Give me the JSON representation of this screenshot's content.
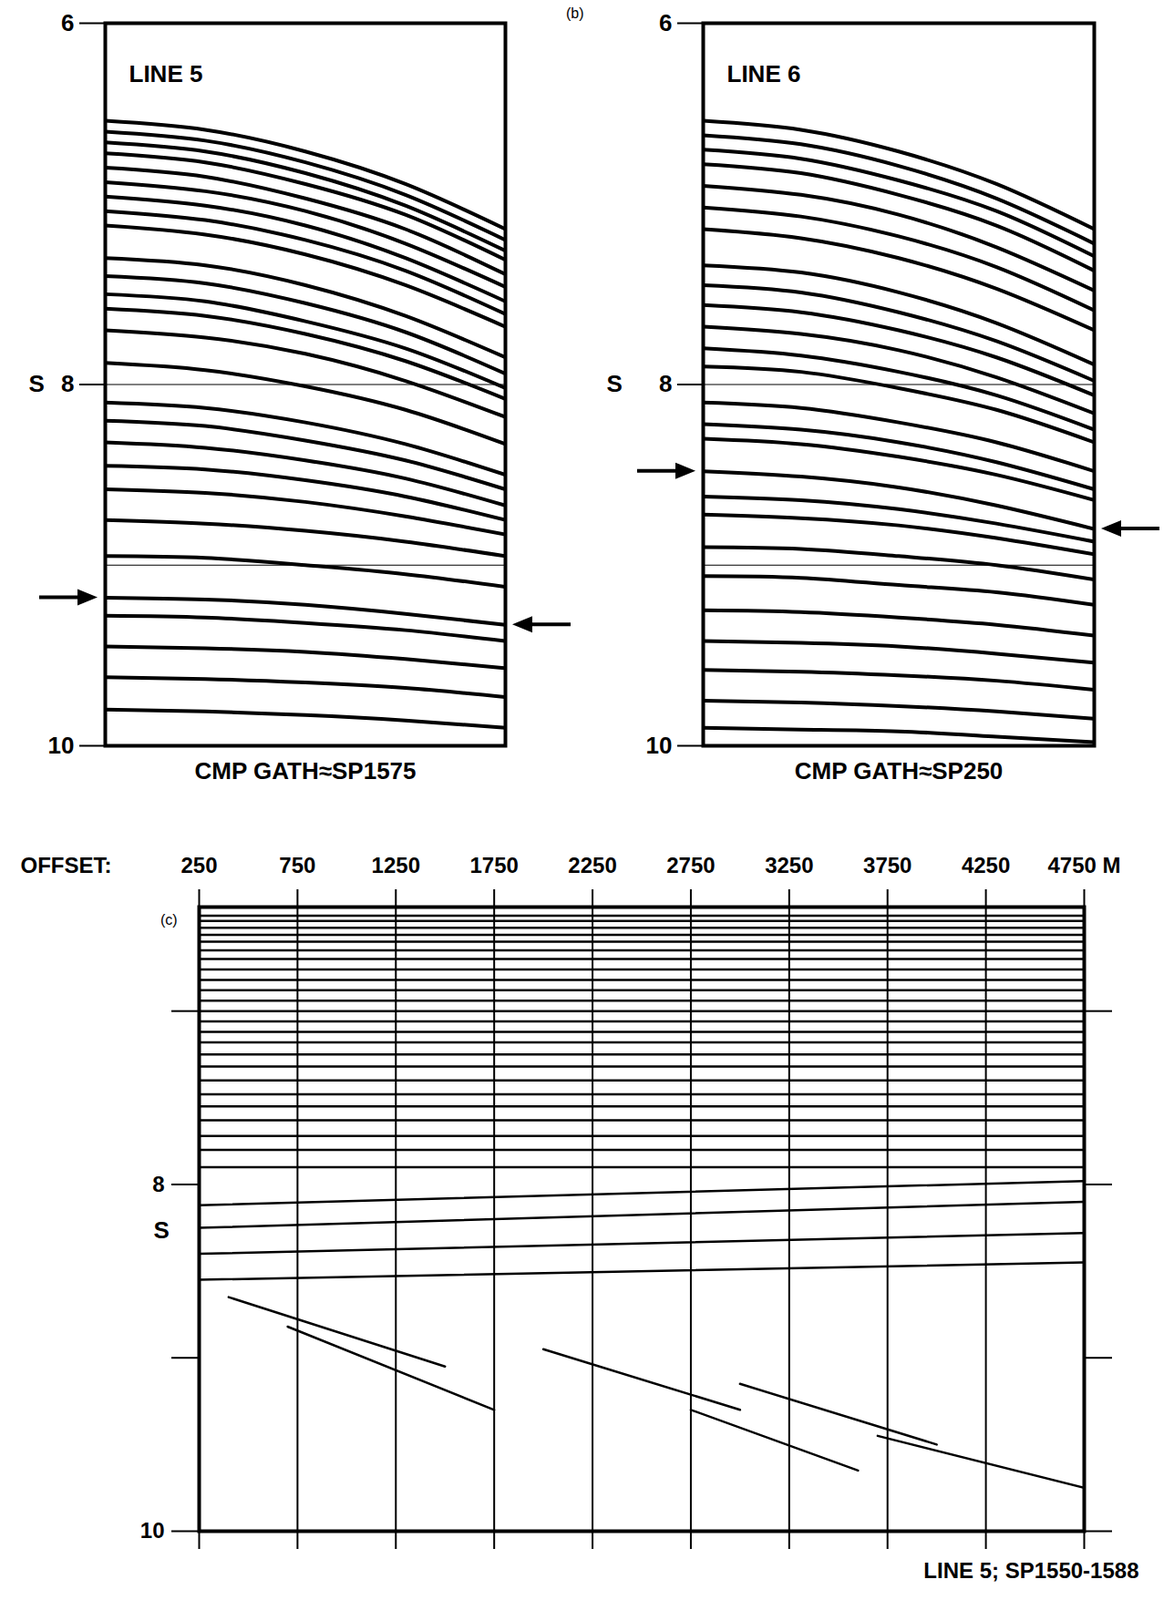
{
  "chart_data": [
    {
      "type": "line",
      "title": "LINE 5",
      "caption": "CMP GATH≈SP1575",
      "ylabel": "S",
      "xlim": [
        250,
        4750
      ],
      "ylim": [
        10,
        6
      ],
      "yticks": [
        6,
        8,
        10
      ],
      "tick_labels": "y",
      "color": "#000000",
      "timing_lines": [
        8,
        9
      ],
      "arrows": [
        {
          "side": "left",
          "y": 9.18
        },
        {
          "side": "right",
          "y": 9.33
        }
      ],
      "x": [
        250,
        1375,
        2500,
        3625,
        4750
      ],
      "series": [
        {
          "values": [
            6.54,
            6.59,
            6.71,
            6.89,
            7.14
          ]
        },
        {
          "values": [
            6.6,
            6.65,
            6.77,
            6.95,
            7.2
          ]
        },
        {
          "values": [
            6.66,
            6.71,
            6.83,
            7.01,
            7.26
          ]
        },
        {
          "values": [
            6.72,
            6.77,
            6.89,
            7.06,
            7.31
          ]
        },
        {
          "values": [
            6.8,
            6.85,
            6.97,
            7.14,
            7.39
          ]
        },
        {
          "values": [
            6.88,
            6.93,
            7.04,
            7.22,
            7.46
          ]
        },
        {
          "values": [
            6.96,
            7.01,
            7.12,
            7.3,
            7.54
          ]
        },
        {
          "values": [
            7.04,
            7.09,
            7.2,
            7.37,
            7.61
          ]
        },
        {
          "values": [
            7.12,
            7.17,
            7.28,
            7.45,
            7.68
          ]
        },
        {
          "values": [
            7.3,
            7.34,
            7.45,
            7.62,
            7.85
          ]
        },
        {
          "values": [
            7.4,
            7.44,
            7.55,
            7.71,
            7.94
          ]
        },
        {
          "values": [
            7.5,
            7.54,
            7.65,
            7.8,
            8.02
          ]
        },
        {
          "values": [
            7.58,
            7.62,
            7.72,
            7.87,
            8.08
          ]
        },
        {
          "values": [
            7.7,
            7.74,
            7.83,
            7.98,
            8.18
          ]
        },
        {
          "values": [
            7.88,
            7.92,
            8.01,
            8.14,
            8.33
          ]
        },
        {
          "values": [
            8.1,
            8.13,
            8.21,
            8.33,
            8.5
          ]
        },
        {
          "values": [
            8.2,
            8.23,
            8.31,
            8.42,
            8.58
          ]
        },
        {
          "values": [
            8.32,
            8.35,
            8.42,
            8.52,
            8.67
          ]
        },
        {
          "values": [
            8.45,
            8.47,
            8.53,
            8.62,
            8.75
          ]
        },
        {
          "values": [
            8.58,
            8.6,
            8.65,
            8.73,
            8.83
          ]
        },
        {
          "values": [
            8.75,
            8.77,
            8.81,
            8.87,
            8.95
          ]
        },
        {
          "values": [
            8.95,
            8.96,
            9.0,
            9.05,
            9.12
          ]
        },
        {
          "values": [
            9.18,
            9.19,
            9.22,
            9.27,
            9.33
          ]
        },
        {
          "values": [
            9.28,
            9.29,
            9.32,
            9.36,
            9.42
          ]
        },
        {
          "values": [
            9.45,
            9.46,
            9.48,
            9.52,
            9.57
          ]
        },
        {
          "values": [
            9.62,
            9.63,
            9.65,
            9.68,
            9.73
          ]
        },
        {
          "values": [
            9.8,
            9.81,
            9.83,
            9.86,
            9.9
          ]
        }
      ]
    },
    {
      "type": "line",
      "panel": "(b)",
      "title": "LINE 6",
      "caption": "CMP GATH≈SP250",
      "ylabel": "S",
      "xlim": [
        250,
        4750
      ],
      "ylim": [
        10,
        6
      ],
      "yticks": [
        6,
        8,
        10
      ],
      "tick_labels": "y",
      "color": "#000000",
      "timing_lines": [
        8,
        9
      ],
      "arrows": [
        {
          "side": "left",
          "y": 8.48
        },
        {
          "side": "right",
          "y": 8.8
        }
      ],
      "x": [
        250,
        1375,
        2500,
        3625,
        4750
      ],
      "series": [
        {
          "values": [
            6.54,
            6.59,
            6.71,
            6.89,
            7.14
          ]
        },
        {
          "values": [
            6.62,
            6.67,
            6.79,
            6.97,
            7.22
          ]
        },
        {
          "values": [
            6.7,
            6.75,
            6.87,
            7.04,
            7.29
          ]
        },
        {
          "values": [
            6.78,
            6.83,
            6.95,
            7.12,
            7.37
          ]
        },
        {
          "values": [
            6.9,
            6.95,
            7.06,
            7.24,
            7.48
          ]
        },
        {
          "values": [
            7.02,
            7.07,
            7.18,
            7.35,
            7.59
          ]
        },
        {
          "values": [
            7.14,
            7.19,
            7.3,
            7.47,
            7.7
          ]
        },
        {
          "values": [
            7.34,
            7.38,
            7.49,
            7.66,
            7.89
          ]
        },
        {
          "values": [
            7.45,
            7.49,
            7.6,
            7.76,
            7.98
          ]
        },
        {
          "values": [
            7.56,
            7.6,
            7.7,
            7.85,
            8.06
          ]
        },
        {
          "values": [
            7.68,
            7.72,
            7.81,
            7.96,
            8.16
          ]
        },
        {
          "values": [
            7.8,
            7.84,
            7.93,
            8.06,
            8.25
          ]
        },
        {
          "values": [
            7.9,
            7.93,
            8.02,
            8.14,
            8.32
          ]
        },
        {
          "values": [
            8.1,
            8.13,
            8.21,
            8.32,
            8.48
          ]
        },
        {
          "values": [
            8.22,
            8.25,
            8.32,
            8.43,
            8.58
          ]
        },
        {
          "values": [
            8.3,
            8.33,
            8.4,
            8.5,
            8.64
          ]
        },
        {
          "values": [
            8.48,
            8.51,
            8.57,
            8.67,
            8.8
          ]
        },
        {
          "values": [
            8.62,
            8.64,
            8.69,
            8.77,
            8.87
          ]
        },
        {
          "values": [
            8.72,
            8.74,
            8.78,
            8.85,
            8.94
          ]
        },
        {
          "values": [
            8.9,
            8.91,
            8.95,
            9.0,
            9.08
          ]
        },
        {
          "values": [
            9.06,
            9.07,
            9.11,
            9.15,
            9.22
          ]
        },
        {
          "values": [
            9.25,
            9.26,
            9.29,
            9.33,
            9.39
          ]
        },
        {
          "values": [
            9.42,
            9.43,
            9.45,
            9.49,
            9.54
          ]
        },
        {
          "values": [
            9.58,
            9.59,
            9.61,
            9.64,
            9.69
          ]
        },
        {
          "values": [
            9.75,
            9.76,
            9.78,
            9.81,
            9.85
          ]
        },
        {
          "values": [
            9.9,
            9.91,
            9.92,
            9.95,
            9.98
          ]
        }
      ]
    },
    {
      "type": "line",
      "panel": "(c)",
      "xlabel": "OFFSET:",
      "ylabel": "S",
      "caption": "LINE 5; SP1550-1588",
      "xlim": [
        250,
        4750
      ],
      "xticks": [
        250,
        750,
        1250,
        1750,
        2250,
        2750,
        3250,
        3750,
        4250,
        {
          "value": 4750,
          "label": "4750 M"
        }
      ],
      "ylim": [
        10,
        6.4
      ],
      "yticks": [
        8,
        10
      ],
      "yticks_unlabeled": [
        7,
        9
      ],
      "grid": true,
      "color": "#000000",
      "series": [
        {
          "x": [
            250,
            4750
          ],
          "values": [
            6.45,
            6.45
          ]
        },
        {
          "x": [
            250,
            4750
          ],
          "values": [
            6.48,
            6.48
          ]
        },
        {
          "x": [
            250,
            4750
          ],
          "values": [
            6.52,
            6.52
          ]
        },
        {
          "x": [
            250,
            4750
          ],
          "values": [
            6.56,
            6.56
          ]
        },
        {
          "x": [
            250,
            4750
          ],
          "values": [
            6.6,
            6.6
          ]
        },
        {
          "x": [
            250,
            4750
          ],
          "values": [
            6.65,
            6.65
          ]
        },
        {
          "x": [
            250,
            4750
          ],
          "values": [
            6.7,
            6.7
          ]
        },
        {
          "x": [
            250,
            4750
          ],
          "values": [
            6.76,
            6.76
          ]
        },
        {
          "x": [
            250,
            4750
          ],
          "values": [
            6.82,
            6.82
          ]
        },
        {
          "x": [
            250,
            4750
          ],
          "values": [
            6.88,
            6.88
          ]
        },
        {
          "x": [
            250,
            4750
          ],
          "values": [
            6.94,
            6.94
          ]
        },
        {
          "x": [
            250,
            4750
          ],
          "values": [
            7.0,
            7.0
          ]
        },
        {
          "x": [
            250,
            4750
          ],
          "values": [
            7.06,
            7.06
          ]
        },
        {
          "x": [
            250,
            4750
          ],
          "values": [
            7.12,
            7.12
          ]
        },
        {
          "x": [
            250,
            4750
          ],
          "values": [
            7.18,
            7.18
          ]
        },
        {
          "x": [
            250,
            4750
          ],
          "values": [
            7.25,
            7.25
          ]
        },
        {
          "x": [
            250,
            4750
          ],
          "values": [
            7.32,
            7.32
          ]
        },
        {
          "x": [
            250,
            4750
          ],
          "values": [
            7.4,
            7.4
          ]
        },
        {
          "x": [
            250,
            4750
          ],
          "values": [
            7.48,
            7.48
          ]
        },
        {
          "x": [
            250,
            4750
          ],
          "values": [
            7.55,
            7.55
          ]
        },
        {
          "x": [
            250,
            4750
          ],
          "values": [
            7.63,
            7.63
          ]
        },
        {
          "x": [
            250,
            4750
          ],
          "values": [
            7.72,
            7.72
          ]
        },
        {
          "x": [
            250,
            4750
          ],
          "values": [
            7.8,
            7.8
          ]
        },
        {
          "x": [
            250,
            4750
          ],
          "values": [
            7.9,
            7.9
          ]
        },
        {
          "x": [
            250,
            4750
          ],
          "values": [
            8.12,
            7.98
          ]
        },
        {
          "x": [
            250,
            4750
          ],
          "values": [
            8.25,
            8.1
          ]
        },
        {
          "x": [
            250,
            4750
          ],
          "values": [
            8.4,
            8.28
          ]
        },
        {
          "x": [
            250,
            4750
          ],
          "values": [
            8.55,
            8.45
          ]
        },
        {
          "x": [
            400,
            1500
          ],
          "values": [
            8.65,
            9.05
          ]
        },
        {
          "x": [
            700,
            1750
          ],
          "values": [
            8.82,
            9.3
          ]
        },
        {
          "x": [
            2000,
            3000
          ],
          "values": [
            8.95,
            9.3
          ]
        },
        {
          "x": [
            2750,
            3600
          ],
          "values": [
            9.3,
            9.65
          ]
        },
        {
          "x": [
            3000,
            4000
          ],
          "values": [
            9.15,
            9.5
          ]
        },
        {
          "x": [
            3700,
            4750
          ],
          "values": [
            9.45,
            9.75
          ]
        }
      ]
    }
  ]
}
